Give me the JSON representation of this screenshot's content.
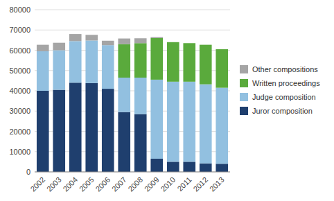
{
  "chart_data": {
    "type": "bar",
    "stacked": true,
    "grid": true,
    "legend": "right",
    "categories": [
      "2002",
      "2003",
      "2004",
      "2005",
      "2006",
      "2007",
      "2008",
      "2009",
      "2010",
      "2011",
      "2012",
      "2013"
    ],
    "series": [
      {
        "name": "Juror composition",
        "color": "#1f3f6e",
        "values": [
          40000,
          40500,
          44000,
          43800,
          41000,
          29500,
          28500,
          6500,
          5000,
          5000,
          4200,
          4000
        ]
      },
      {
        "name": "Judge composition",
        "color": "#92c0e0",
        "values": [
          19500,
          19500,
          20500,
          21000,
          21500,
          17000,
          18000,
          39000,
          39500,
          39500,
          39000,
          37500
        ]
      },
      {
        "name": "Written proceedings",
        "color": "#5aaa3c",
        "values": [
          0,
          0,
          0,
          0,
          0,
          16500,
          17000,
          20500,
          19500,
          19000,
          19500,
          19000
        ]
      },
      {
        "name": "Other compositions",
        "color": "#a5a5a5",
        "values": [
          3200,
          3700,
          3500,
          2800,
          2200,
          2800,
          2400,
          500,
          0,
          0,
          0,
          0
        ]
      }
    ],
    "ylim": [
      0,
      80000
    ],
    "yticks": [
      0,
      10000,
      20000,
      30000,
      40000,
      50000,
      60000,
      70000,
      80000
    ]
  }
}
